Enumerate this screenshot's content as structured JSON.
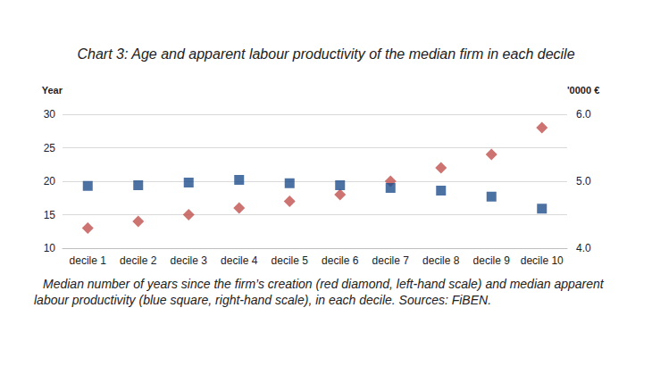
{
  "chart_data": {
    "type": "scatter",
    "title": "Chart 3: Age and apparent labour productivity of the median firm in each decile",
    "caption": "Median number of years since the firm’s creation (red diamond, left-hand scale) and median apparent labour productivity (blue square, right-hand scale), in each decile. Sources: FiBEN.",
    "y_label": "Year",
    "y2_label": "'0000 €",
    "categories": [
      "decile 1",
      "decile 2",
      "decile 3",
      "decile 4",
      "decile 5",
      "decile 6",
      "decile 7",
      "decile 8",
      "decile 9",
      "decile 10"
    ],
    "series": [
      {
        "color": "#C0504D",
        "marker": "diamond",
        "axis": "y",
        "values": [
          13,
          14,
          15,
          16,
          17,
          18,
          20,
          22,
          24,
          28
        ]
      },
      {
        "color": "#1F4E8C",
        "marker": "square",
        "axis": "y2",
        "values": [
          4.93,
          4.94,
          4.98,
          5.02,
          4.97,
          4.94,
          4.9,
          4.86,
          4.77,
          4.59
        ]
      }
    ],
    "ylim": [
      10,
      30
    ],
    "yticks": [
      10,
      15,
      20,
      25,
      30
    ],
    "y2lim": [
      4,
      6
    ],
    "y2ticks": [
      {
        "value": 4,
        "label": "4.0"
      },
      {
        "value": 5,
        "label": "5.0"
      },
      {
        "value": 6,
        "label": "6.0"
      }
    ],
    "grid": true
  }
}
